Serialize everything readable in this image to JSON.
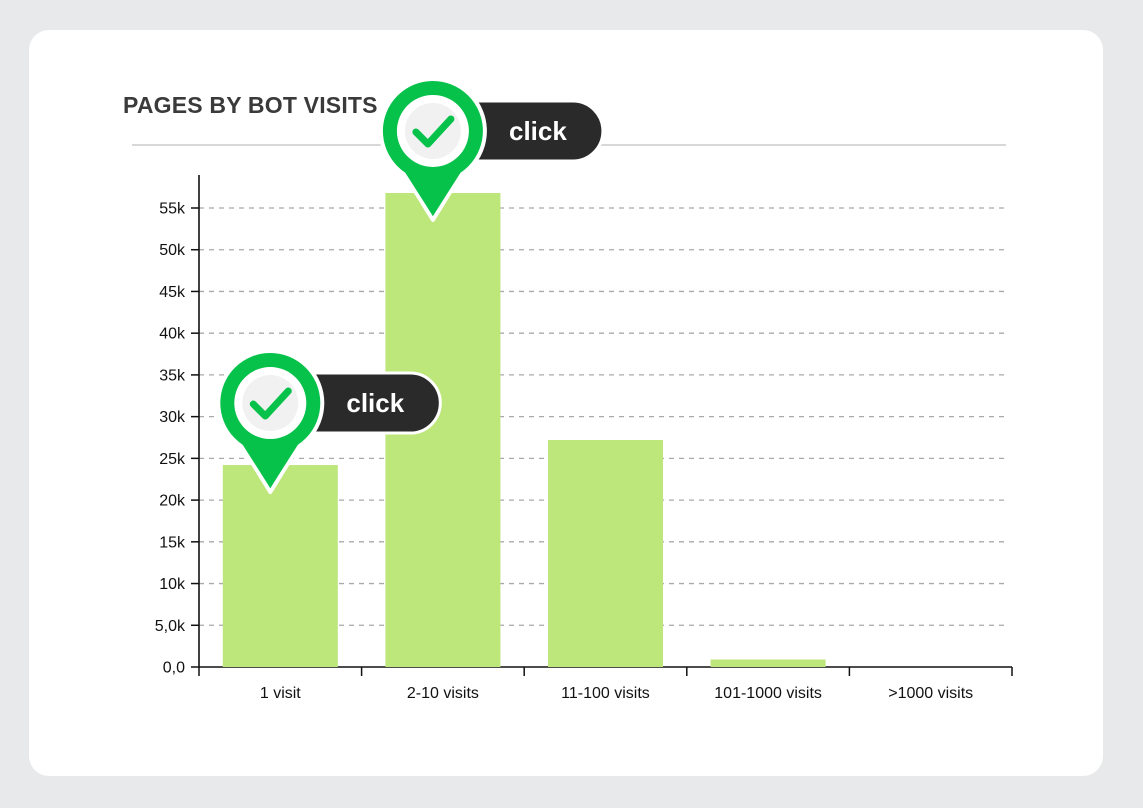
{
  "header": {
    "title": "PAGES BY BOT VISITS",
    "info_icon": "info-circle-icon"
  },
  "colors": {
    "bar": "#bde67b",
    "accent_green": "#06c24a",
    "callout_dark": "#2a2a2a",
    "info_blue": "#3d6db5"
  },
  "chart_data": {
    "type": "bar",
    "title": "PAGES BY BOT VISITS",
    "categories": [
      "1 visit",
      "2-10 visits",
      "11-100 visits",
      "101-1000 visits",
      ">1000 visits"
    ],
    "values": [
      24200,
      56800,
      27200,
      900,
      0
    ],
    "ylim": [
      0,
      59000
    ],
    "yticks": [
      0,
      5000,
      10000,
      15000,
      20000,
      25000,
      30000,
      35000,
      40000,
      45000,
      50000,
      55000
    ],
    "ytick_labels": [
      "0,0",
      "5,0k",
      "10k",
      "15k",
      "20k",
      "25k",
      "30k",
      "35k",
      "40k",
      "45k",
      "50k",
      "55k"
    ],
    "grid": true,
    "annotations": [
      {
        "category": "1 visit",
        "label": "click",
        "icon": "check-icon"
      },
      {
        "category": "2-10 visits",
        "label": "click",
        "icon": "check-icon"
      }
    ]
  }
}
